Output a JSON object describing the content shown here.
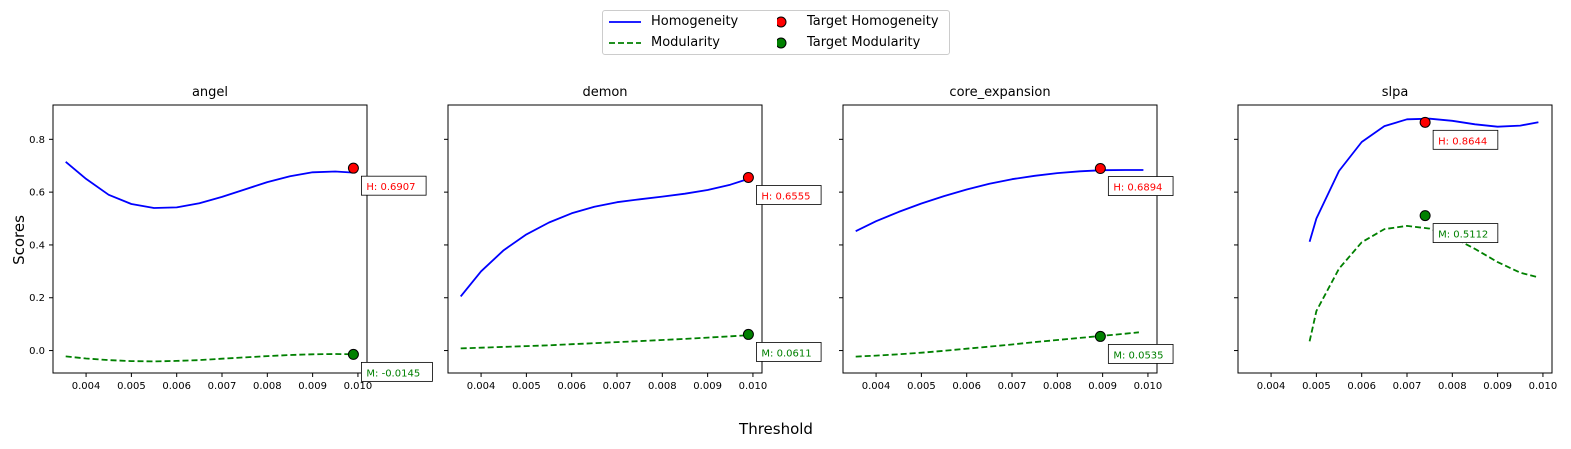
{
  "legend": {
    "entries": [
      {
        "label": "Homogeneity",
        "marker": "line-solid",
        "color": "#0000ff"
      },
      {
        "label": "Modularity",
        "marker": "line-dashed",
        "color": "#008000"
      },
      {
        "label": "Target Homogeneity",
        "marker": "circle",
        "color": "#ff0000"
      },
      {
        "label": "Target Modularity",
        "marker": "circle",
        "color": "#008000"
      }
    ]
  },
  "chart_data": {
    "type": "line",
    "xlabel": "Threshold",
    "ylabel": "Scores",
    "ylim": [
      -0.085,
      0.93
    ],
    "yticks": [
      0.0,
      0.2,
      0.4,
      0.6,
      0.8
    ],
    "ytick_labels": [
      "0.0",
      "0.2",
      "0.4",
      "0.6",
      "0.8"
    ],
    "xticks": [
      0.004,
      0.005,
      0.006,
      0.007,
      0.008,
      0.009,
      0.01
    ],
    "xtick_labels": [
      "0.004",
      "0.005",
      "0.006",
      "0.007",
      "0.008",
      "0.009",
      "0.010"
    ],
    "grid": false,
    "legend_position": "top-center",
    "colors": {
      "homogeneity": "#0000ff",
      "modularity": "#008000",
      "target_h": "#ff0000",
      "target_m": "#008000"
    },
    "panels": [
      {
        "title": "angel",
        "xlim": [
          0.00327,
          0.0102
        ],
        "homogeneity": {
          "x": [
            0.00355,
            0.004,
            0.0045,
            0.005,
            0.0055,
            0.006,
            0.0065,
            0.007,
            0.0075,
            0.008,
            0.0085,
            0.009,
            0.0095,
            0.0099
          ],
          "y": [
            0.715,
            0.65,
            0.59,
            0.555,
            0.54,
            0.542,
            0.558,
            0.582,
            0.61,
            0.638,
            0.66,
            0.675,
            0.678,
            0.674
          ]
        },
        "modularity": {
          "x": [
            0.00355,
            0.004,
            0.0045,
            0.005,
            0.0055,
            0.006,
            0.0065,
            0.007,
            0.0075,
            0.008,
            0.0085,
            0.009,
            0.0095,
            0.0099
          ],
          "y": [
            -0.022,
            -0.03,
            -0.036,
            -0.04,
            -0.041,
            -0.039,
            -0.036,
            -0.031,
            -0.026,
            -0.021,
            -0.017,
            -0.014,
            -0.013,
            -0.014
          ]
        },
        "target_h": {
          "x": 0.0099,
          "y": 0.6907,
          "label": "H: 0.6907"
        },
        "target_m": {
          "x": 0.0099,
          "y": -0.0145,
          "label": "M: -0.0145"
        }
      },
      {
        "title": "demon",
        "xlim": [
          0.00327,
          0.0102
        ],
        "homogeneity": {
          "x": [
            0.00355,
            0.004,
            0.0045,
            0.005,
            0.0055,
            0.006,
            0.0065,
            0.007,
            0.0075,
            0.008,
            0.0085,
            0.009,
            0.0095,
            0.0099
          ],
          "y": [
            0.205,
            0.3,
            0.38,
            0.44,
            0.485,
            0.52,
            0.545,
            0.562,
            0.573,
            0.583,
            0.594,
            0.608,
            0.628,
            0.65
          ]
        },
        "modularity": {
          "x": [
            0.00355,
            0.004,
            0.0045,
            0.005,
            0.0055,
            0.006,
            0.0065,
            0.007,
            0.0075,
            0.008,
            0.0085,
            0.009,
            0.0095,
            0.0099
          ],
          "y": [
            0.008,
            0.011,
            0.014,
            0.017,
            0.02,
            0.024,
            0.028,
            0.032,
            0.036,
            0.04,
            0.044,
            0.049,
            0.054,
            0.058
          ]
        },
        "target_h": {
          "x": 0.0099,
          "y": 0.6555,
          "label": "H: 0.6555"
        },
        "target_m": {
          "x": 0.0099,
          "y": 0.0611,
          "label": "M: 0.0611"
        }
      },
      {
        "title": "core_expansion",
        "xlim": [
          0.00327,
          0.0102
        ],
        "homogeneity": {
          "x": [
            0.00355,
            0.004,
            0.0045,
            0.005,
            0.0055,
            0.006,
            0.0065,
            0.007,
            0.0075,
            0.008,
            0.0085,
            0.009,
            0.0095,
            0.0099
          ],
          "y": [
            0.452,
            0.49,
            0.525,
            0.557,
            0.585,
            0.61,
            0.632,
            0.649,
            0.662,
            0.672,
            0.679,
            0.683,
            0.684,
            0.684
          ]
        },
        "modularity": {
          "x": [
            0.00355,
            0.004,
            0.0045,
            0.005,
            0.0055,
            0.006,
            0.0065,
            0.007,
            0.0075,
            0.008,
            0.0085,
            0.009,
            0.0095,
            0.0098
          ],
          "y": [
            -0.023,
            -0.019,
            -0.014,
            -0.008,
            -0.001,
            0.007,
            0.015,
            0.023,
            0.032,
            0.04,
            0.048,
            0.056,
            0.064,
            0.069
          ]
        },
        "target_h": {
          "x": 0.00895,
          "y": 0.6894,
          "label": "H: 0.6894"
        },
        "target_m": {
          "x": 0.00895,
          "y": 0.0535,
          "label": "M: 0.0535"
        }
      },
      {
        "title": "slpa",
        "xlim": [
          0.00327,
          0.0102
        ],
        "homogeneity": {
          "x": [
            0.00485,
            0.005,
            0.0055,
            0.006,
            0.0065,
            0.007,
            0.0075,
            0.008,
            0.0085,
            0.009,
            0.0095,
            0.0099
          ],
          "y": [
            0.412,
            0.5,
            0.68,
            0.79,
            0.85,
            0.876,
            0.878,
            0.87,
            0.857,
            0.848,
            0.852,
            0.865
          ]
        },
        "modularity": {
          "x": [
            0.00485,
            0.005,
            0.0055,
            0.006,
            0.0065,
            0.007,
            0.0075,
            0.008,
            0.0085,
            0.009,
            0.0095,
            0.0099
          ],
          "y": [
            0.035,
            0.15,
            0.31,
            0.41,
            0.46,
            0.472,
            0.462,
            0.43,
            0.385,
            0.335,
            0.295,
            0.277
          ]
        },
        "target_h": {
          "x": 0.0074,
          "y": 0.8644,
          "label": "H: 0.8644"
        },
        "target_m": {
          "x": 0.0074,
          "y": 0.5112,
          "label": "M: 0.5112"
        }
      }
    ]
  }
}
